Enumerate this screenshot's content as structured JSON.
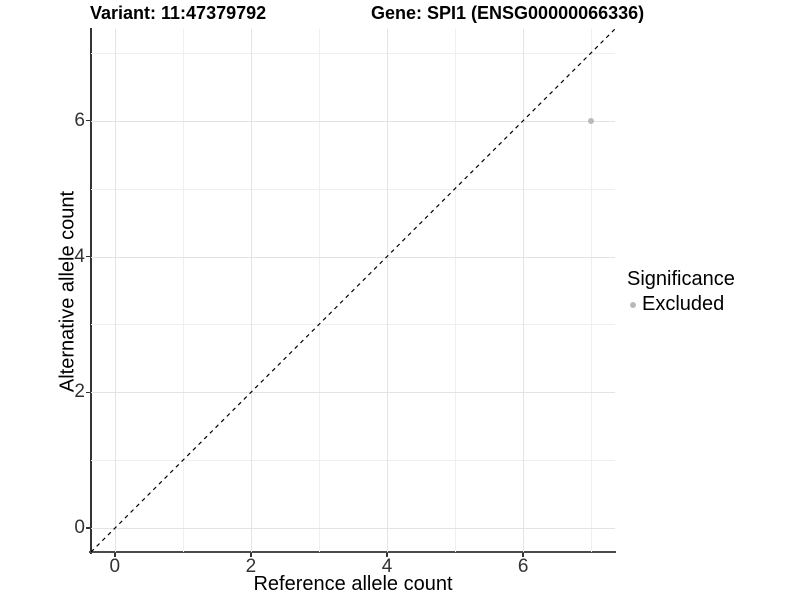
{
  "chart_data": {
    "type": "scatter",
    "titles": {
      "variant": "Variant: 11:47379792",
      "gene": "Gene: SPI1 (ENSG00000066336)"
    },
    "xlabel": "Reference allele count",
    "ylabel": "Alternative allele count",
    "xlim": [
      -0.35,
      7.35
    ],
    "ylim": [
      -0.35,
      7.35
    ],
    "x_ticks": [
      0,
      2,
      4,
      6
    ],
    "y_ticks": [
      0,
      2,
      4,
      6
    ],
    "minor_gridlines": [
      1,
      3,
      5,
      7
    ],
    "grid": "major and minor, light gray on white",
    "identity_line": {
      "style": "dashed",
      "slope": 1,
      "intercept": 0,
      "color": "#000000"
    },
    "series": [
      {
        "name": "Excluded",
        "color": "#b9b9b9",
        "points": [
          {
            "x": 7,
            "y": 6
          }
        ]
      }
    ],
    "legend": {
      "title": "Significance",
      "position": "right",
      "entries": [
        {
          "label": "Excluded",
          "color": "#b9b9b9"
        }
      ]
    },
    "colors": {
      "grid_major": "#e3e3e3",
      "grid_minor": "#efefef",
      "axis_line": "#3c3c3c",
      "tick_label": "#333333",
      "dashed_line": "#000000"
    }
  }
}
